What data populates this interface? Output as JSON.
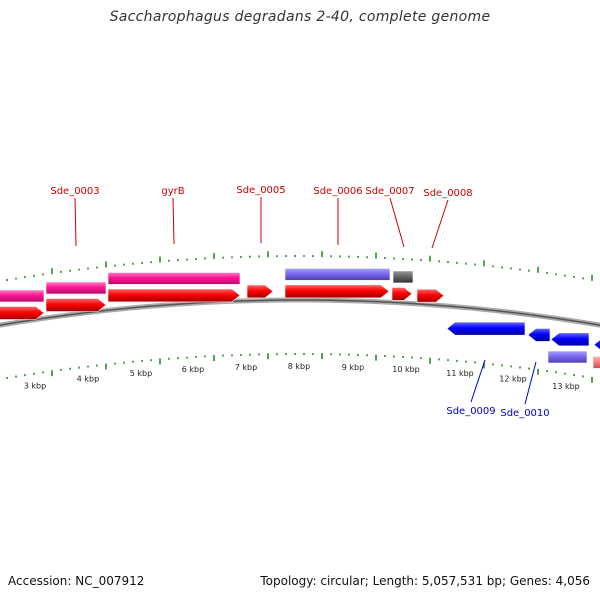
{
  "title": "Saccharophagus degradans 2-40, complete genome",
  "footer": {
    "accession_text": "Accession: NC_007912",
    "summary_text": "Topology: circular; Length: 5,057,531 bp; Genes: 4,056"
  },
  "colors": {
    "cds_forward": "#ff0000",
    "cds_reverse": "#0000ff",
    "gene_forward": "#ff1493",
    "gene_alt": "#7b68ee",
    "gene_grey": "#666666",
    "gene_reverse_light": "#ff8080",
    "tick": "#2e8b2e",
    "backbone": "#808080",
    "label_forward": "#cc0000",
    "label_reverse": "#0000cc"
  },
  "gene_labels": [
    {
      "text": "Sde_0003",
      "strand": "forward"
    },
    {
      "text": "gyrB",
      "strand": "forward"
    },
    {
      "text": "Sde_0005",
      "strand": "forward"
    },
    {
      "text": "Sde_0006",
      "strand": "forward"
    },
    {
      "text": "Sde_0007",
      "strand": "forward"
    },
    {
      "text": "Sde_0008",
      "strand": "forward"
    },
    {
      "text": "Sde_0009",
      "strand": "reverse"
    },
    {
      "text": "Sde_0010",
      "strand": "reverse"
    }
  ],
  "kbp_labels": [
    "3 kbp",
    "4 kbp",
    "5 kbp",
    "6 kbp",
    "7 kbp",
    "8 kbp",
    "9 kbp",
    "10 kbp",
    "11 kbp",
    "12 kbp",
    "13 kbp"
  ]
}
